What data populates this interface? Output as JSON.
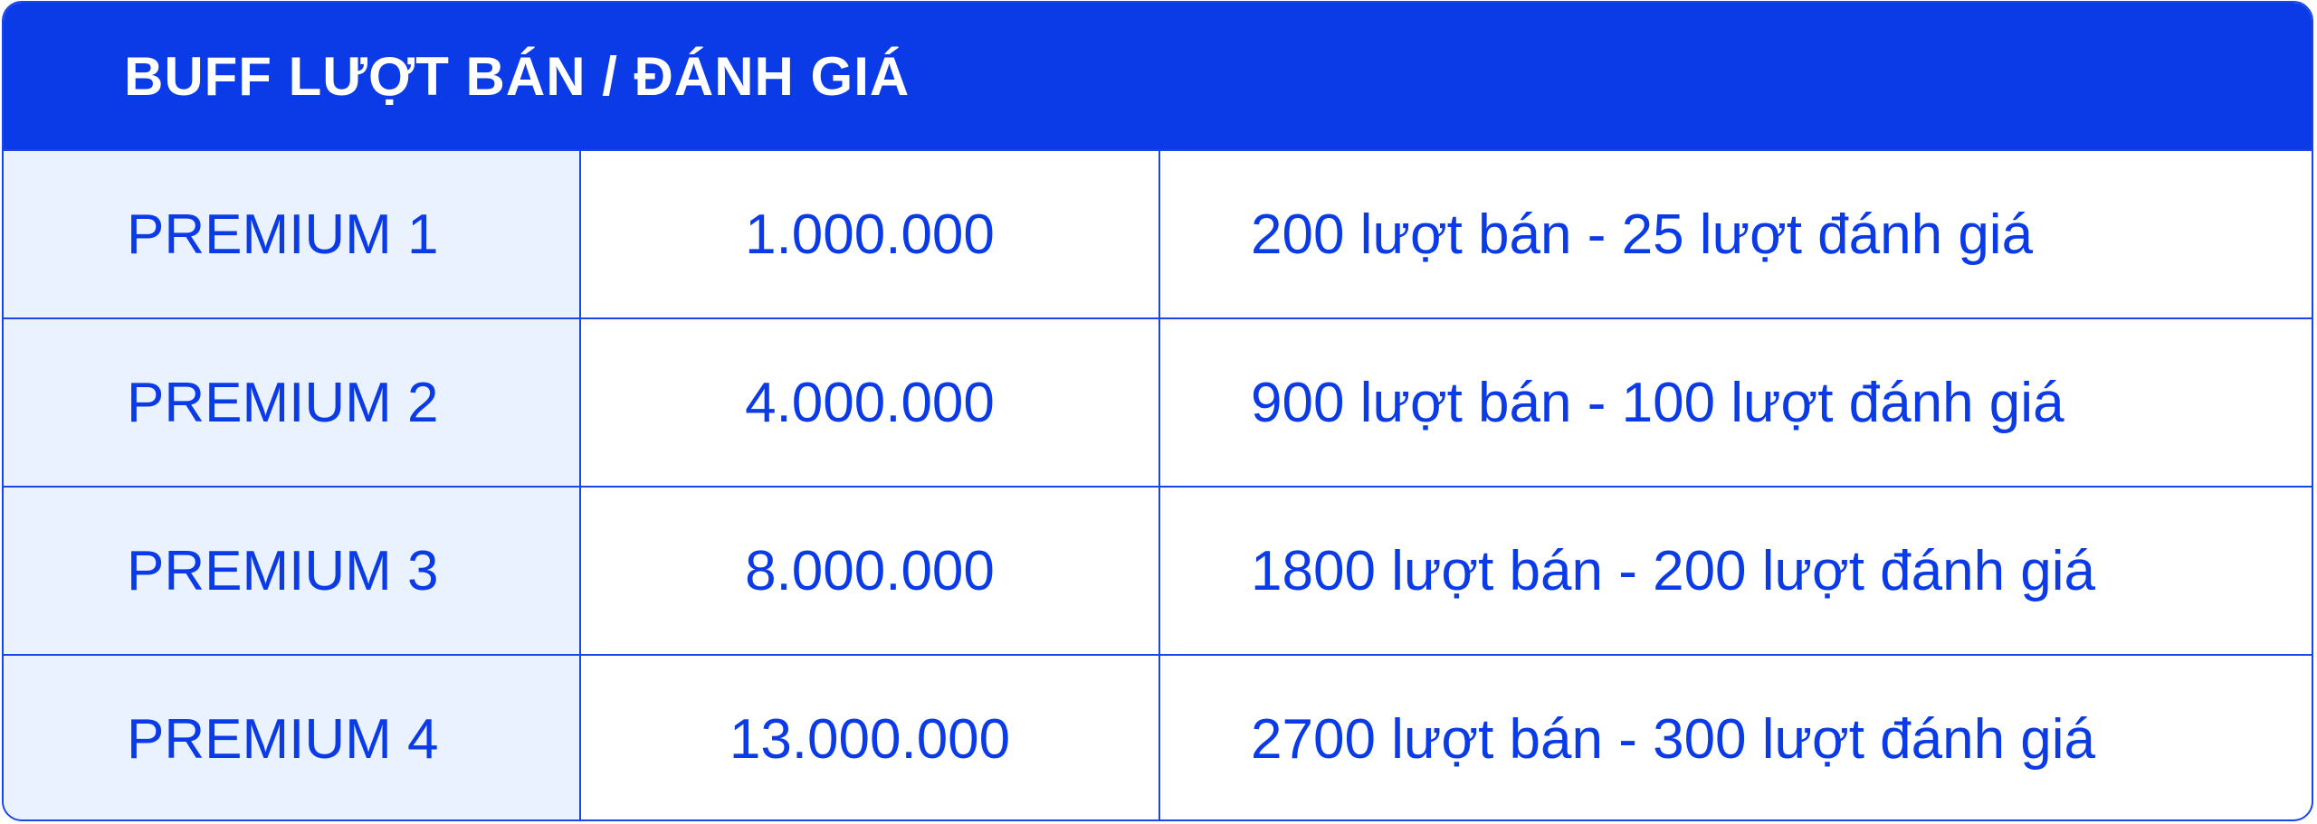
{
  "title": "BUFF LƯỢT BÁN / ĐÁNH GIÁ",
  "colors": {
    "primary": "#0a3be6",
    "first_column_bg": "#eaf2ff",
    "border": "#1a46e8"
  },
  "rows": [
    {
      "plan": "PREMIUM 1",
      "price": "1.000.000",
      "description": "200 lượt bán - 25 lượt đánh giá"
    },
    {
      "plan": "PREMIUM 2",
      "price": "4.000.000",
      "description": "900 lượt bán - 100 lượt đánh giá"
    },
    {
      "plan": "PREMIUM 3",
      "price": "8.000.000",
      "description": "1800 lượt bán - 200 lượt đánh giá"
    },
    {
      "plan": "PREMIUM 4",
      "price": "13.000.000",
      "description": "2700 lượt bán - 300 lượt đánh giá"
    }
  ]
}
